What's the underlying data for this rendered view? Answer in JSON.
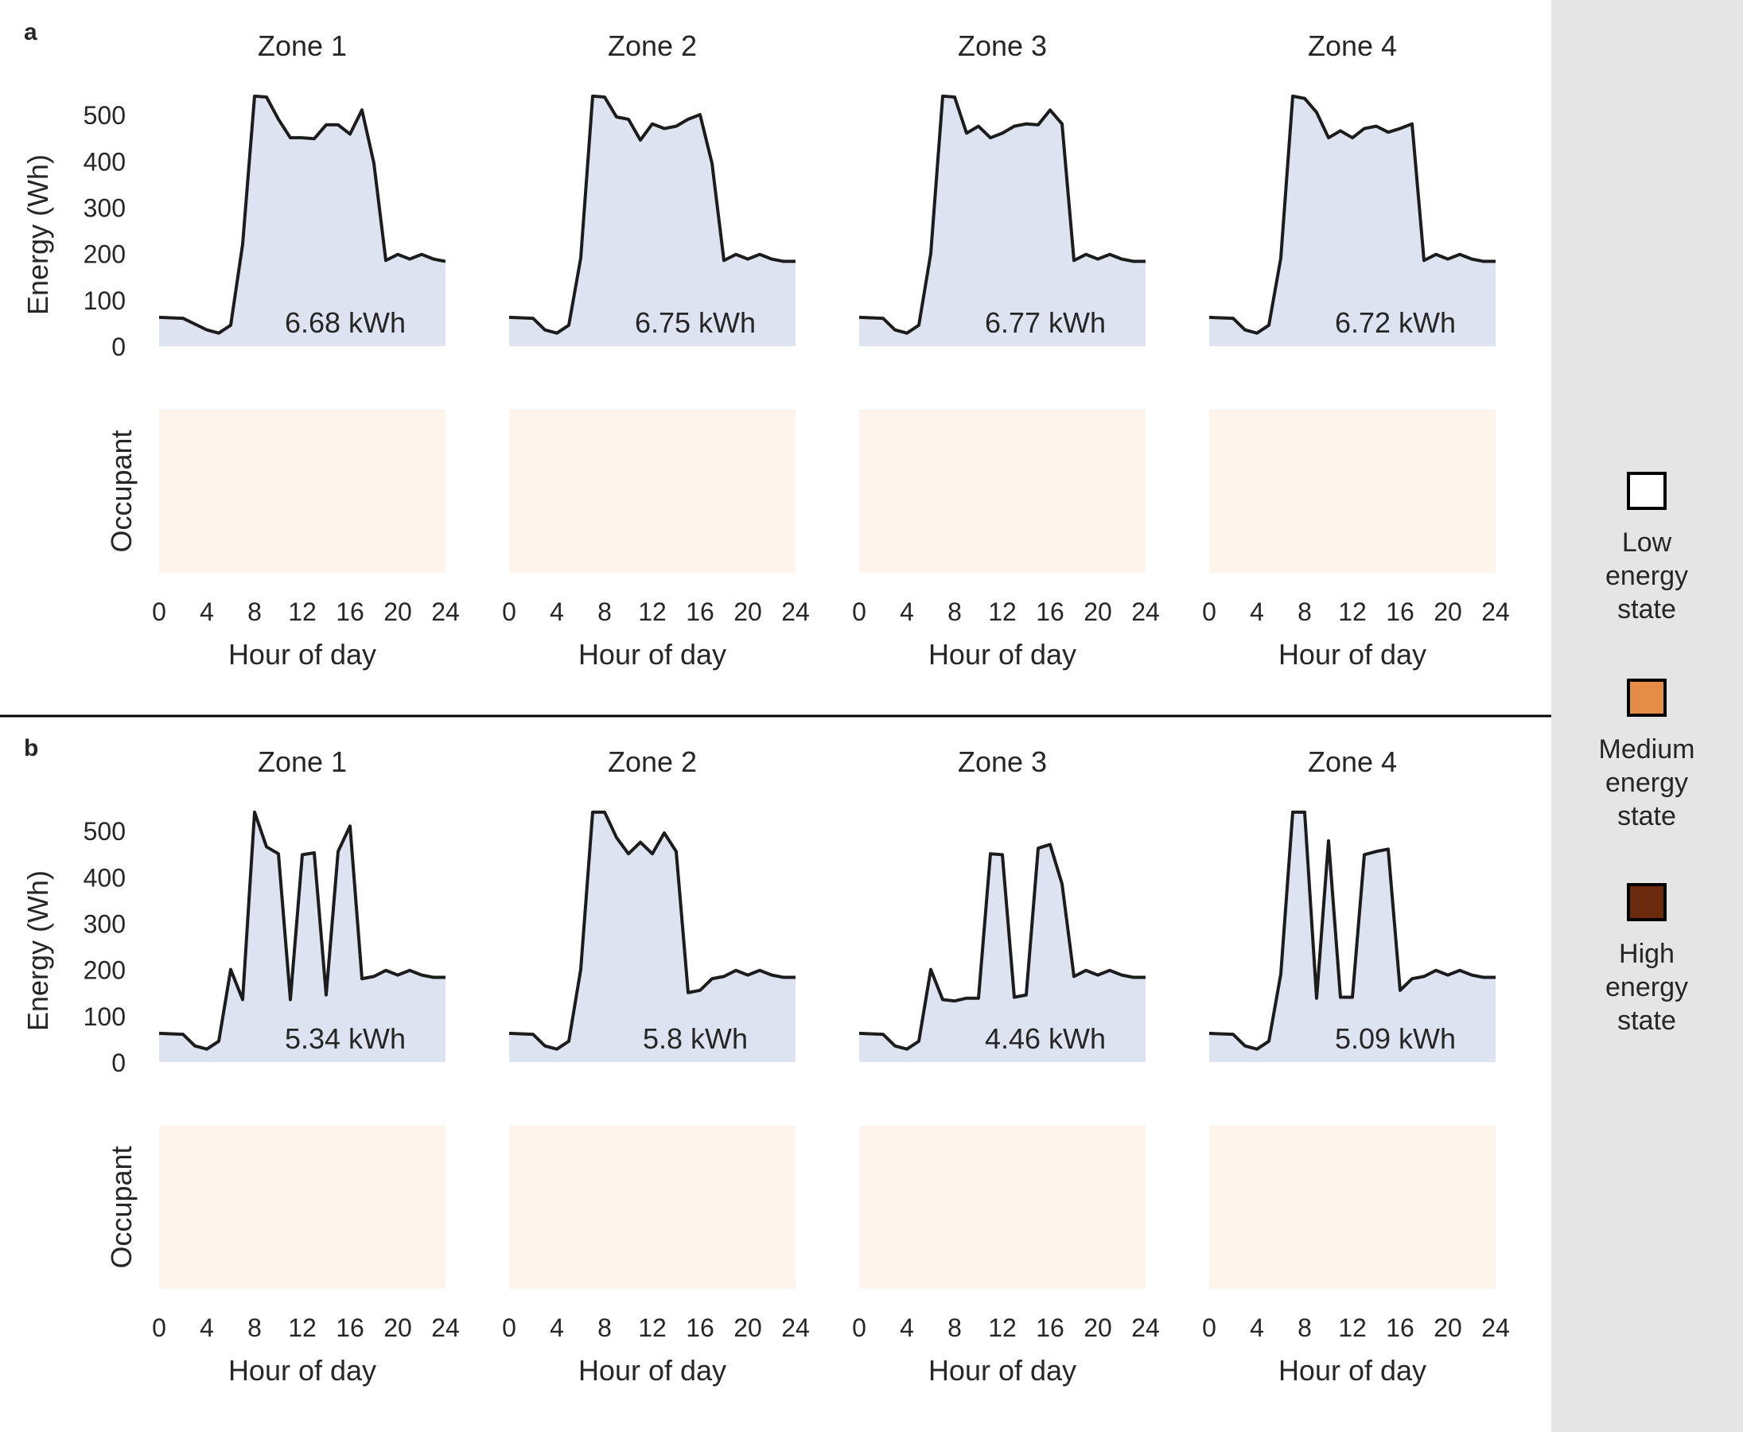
{
  "colors": {
    "area_fill": "#dde3f0",
    "line": "#1c1c1c",
    "low_state": "#fcf3ea",
    "medium_state": "#e58c47",
    "high_state": "#6b2a0d",
    "legend_panel": "#e5e5e5",
    "divider": "#000000"
  },
  "legend": {
    "items": [
      {
        "id": "low",
        "lines": [
          "Low",
          "energy",
          "state"
        ]
      },
      {
        "id": "medium",
        "lines": [
          "Medium",
          "energy",
          "state"
        ]
      },
      {
        "id": "high",
        "lines": [
          "High",
          "energy",
          "state"
        ]
      }
    ]
  },
  "chart_data": [
    {
      "panel": "a",
      "type": "area",
      "ylabel": "Energy (Wh)",
      "heatmap_ylabel": "Occupant",
      "xlabel": "Hour of day",
      "xticks": [
        0,
        4,
        8,
        12,
        16,
        20,
        24
      ],
      "yticks": [
        0,
        100,
        200,
        300,
        400,
        500
      ],
      "xlim": [
        0,
        24
      ],
      "ylim": [
        0,
        550
      ],
      "zones": [
        {
          "title": "Zone 1",
          "total": "6.68 kWh",
          "x": [
            0,
            2,
            4,
            5,
            6,
            7,
            8,
            9,
            10,
            11,
            12,
            13,
            14,
            15,
            16,
            17,
            18,
            19,
            20,
            21,
            22,
            23,
            24
          ],
          "y": [
            62,
            60,
            35,
            28,
            45,
            220,
            540,
            538,
            490,
            450,
            450,
            448,
            478,
            478,
            458,
            510,
            395,
            185,
            198,
            188,
            198,
            188,
            183
          ]
        },
        {
          "title": "Zone 2",
          "total": "6.75 kWh",
          "x": [
            0,
            2,
            3,
            4,
            5,
            6,
            7,
            8,
            9,
            10,
            11,
            12,
            13,
            14,
            15,
            16,
            17,
            18,
            19,
            20,
            21,
            22,
            23,
            24
          ],
          "y": [
            62,
            60,
            35,
            28,
            45,
            190,
            540,
            538,
            495,
            490,
            445,
            480,
            470,
            475,
            490,
            500,
            395,
            185,
            198,
            188,
            198,
            188,
            183,
            183
          ]
        },
        {
          "title": "Zone 3",
          "total": "6.77 kWh",
          "x": [
            0,
            2,
            3,
            4,
            5,
            6,
            7,
            8,
            9,
            10,
            11,
            12,
            13,
            14,
            15,
            16,
            17,
            18,
            19,
            20,
            21,
            22,
            23,
            24
          ],
          "y": [
            62,
            60,
            35,
            28,
            45,
            200,
            540,
            538,
            460,
            475,
            450,
            460,
            475,
            480,
            478,
            510,
            480,
            185,
            198,
            188,
            198,
            188,
            183,
            183
          ]
        },
        {
          "title": "Zone 4",
          "total": "6.72 kWh",
          "x": [
            0,
            2,
            3,
            4,
            5,
            6,
            7,
            8,
            9,
            10,
            11,
            12,
            13,
            14,
            15,
            16,
            17,
            18,
            19,
            20,
            21,
            22,
            23,
            24
          ],
          "y": [
            62,
            60,
            35,
            28,
            45,
            190,
            540,
            535,
            505,
            450,
            465,
            450,
            470,
            475,
            462,
            470,
            480,
            185,
            198,
            188,
            198,
            188,
            183,
            183
          ]
        }
      ],
      "heatmaps": [
        {
          "rows": [
            "000000000000000000000000",
            "000000000000000000000000",
            "000000000000000000000000",
            "000000000000000000000000",
            "000000000000000000000000",
            "000000000000000000000000",
            "000000000000000000000000",
            "000000000000000000000000",
            "000000000000000000000000",
            "000000000000000000000000"
          ]
        },
        {
          "rows": [
            "000000000000000000000000",
            "000000000000000000000000",
            "000000000000000000000000",
            "000000000000000000000000",
            "000000000000000000000000",
            "000000000000000000000000",
            "000000000000000000000000",
            "000000000000000000000000",
            "000000000000000000000000",
            "000000000000000000000000"
          ]
        },
        {
          "rows": [
            "000000000000000000000000",
            "000000000000000000000000",
            "000000000000000000000000",
            "000000000000000000000000",
            "000000000000000000000000",
            "000000000000000000000000",
            "000000000000000000000000",
            "000000000000000000000000",
            "000000000000000000000000",
            "000000000000000000000000"
          ]
        },
        {
          "rows": [
            "000000000000000000000000",
            "000000000000000000000000",
            "000000000000000000000000",
            "000000000000000000000000",
            "000000000000000000000000",
            "000000000000000000000000",
            "000000000000000000000000",
            "000000000000000000000000",
            "000000000000000000000000",
            "000000000000000000000000"
          ]
        }
      ]
    },
    {
      "panel": "b",
      "type": "area",
      "ylabel": "Energy (Wh)",
      "heatmap_ylabel": "Occupant",
      "xlabel": "Hour of day",
      "xticks": [
        0,
        4,
        8,
        12,
        16,
        20,
        24
      ],
      "yticks": [
        0,
        100,
        200,
        300,
        400,
        500
      ],
      "xlim": [
        0,
        24
      ],
      "ylim": [
        0,
        550
      ],
      "zones": [
        {
          "title": "Zone 1",
          "total": "5.34 kWh",
          "x": [
            0,
            2,
            3,
            4,
            5,
            6,
            7,
            8,
            9,
            10,
            11,
            12,
            13,
            14,
            15,
            16,
            17,
            18,
            19,
            20,
            21,
            22,
            23,
            24
          ],
          "y": [
            62,
            60,
            35,
            28,
            45,
            200,
            135,
            540,
            465,
            450,
            135,
            448,
            452,
            145,
            455,
            510,
            180,
            185,
            198,
            188,
            198,
            188,
            183,
            183
          ]
        },
        {
          "title": "Zone 2",
          "total": "5.8 kWh",
          "x": [
            0,
            2,
            3,
            4,
            5,
            6,
            7,
            8,
            9,
            10,
            11,
            12,
            13,
            14,
            15,
            16,
            17,
            18,
            19,
            20,
            21,
            22,
            23,
            24
          ],
          "y": [
            62,
            60,
            35,
            28,
            45,
            200,
            540,
            540,
            485,
            450,
            475,
            450,
            495,
            455,
            150,
            155,
            180,
            185,
            198,
            188,
            198,
            188,
            183,
            183
          ]
        },
        {
          "title": "Zone 3",
          "total": "4.46 kWh",
          "x": [
            0,
            2,
            3,
            4,
            5,
            6,
            7,
            8,
            9,
            10,
            11,
            12,
            13,
            14,
            15,
            16,
            17,
            18,
            19,
            20,
            21,
            22,
            23,
            24
          ],
          "y": [
            62,
            60,
            35,
            28,
            45,
            200,
            135,
            132,
            138,
            138,
            450,
            448,
            140,
            145,
            462,
            470,
            385,
            185,
            198,
            188,
            198,
            188,
            183,
            183
          ]
        },
        {
          "title": "Zone 4",
          "total": "5.09 kWh",
          "x": [
            0,
            2,
            3,
            4,
            5,
            6,
            7,
            8,
            9,
            10,
            11,
            12,
            13,
            14,
            15,
            16,
            17,
            18,
            19,
            20,
            21,
            22,
            23,
            24
          ],
          "y": [
            62,
            60,
            35,
            28,
            45,
            190,
            540,
            540,
            138,
            478,
            140,
            140,
            448,
            455,
            460,
            155,
            180,
            185,
            198,
            188,
            198,
            188,
            183,
            183
          ]
        }
      ],
      "heatmaps": [
        {
          "rows": [
            "000000000000000000000000",
            "000000000000000000000000",
            "000000000000000000000000",
            "000000000000000000000000",
            "000000000000000000000000",
            "000000000000000000000000",
            "000000000000000000000000",
            "000000000000000000000000",
            "000000000000000000000000",
            "000000000000000000000000"
          ]
        },
        {
          "rows": [
            "000000000000000000000000",
            "000000000000000000000000",
            "000000000000000000000000",
            "000000000000000000000000",
            "000000000000000000000000",
            "000000000000000000000000",
            "000000000000000000000000",
            "000000000000000000000000",
            "000000000000000000000000",
            "000000000000000000000000"
          ]
        },
        {
          "rows": [
            "000000000000000000000000",
            "000000000000000000000000",
            "000000000000000000000000",
            "000000000000000000000000",
            "000000000000000000000000",
            "000000000000000000000000",
            "000000000000000000000000",
            "000000000000000000000000",
            "000000000000000000000000",
            "000000000000000000000000"
          ]
        },
        {
          "rows": [
            "000000000000000000000000",
            "000000000000000000000000",
            "000000000000000000000000",
            "000000000000000000000000",
            "000000000000000000000000",
            "000000000000000000000000",
            "000000000000000000000000",
            "000000000000000000000000",
            "000000000000000000000000",
            "000000000000000000000000"
          ]
        }
      ]
    }
  ]
}
